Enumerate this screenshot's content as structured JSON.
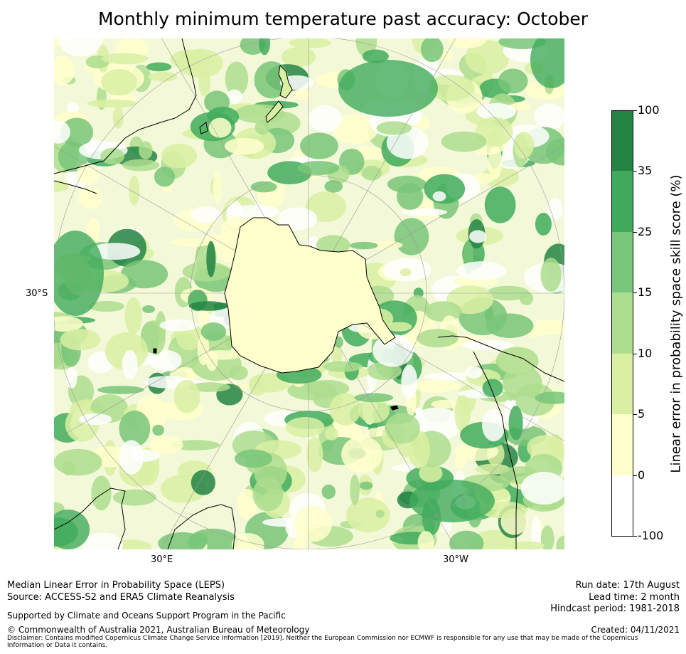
{
  "title": "Monthly minimum temperature past accuracy: October",
  "map": {
    "projection": "south-polar-stereographic",
    "latitude_labels": [
      "30°S"
    ],
    "longitude_labels": [
      "30°E",
      "30°W"
    ],
    "colors": {
      "coast": "#000000",
      "graticule": "#9a9a9a"
    }
  },
  "colorbar": {
    "title": "Linear error in probability space skill score (%)",
    "ticks": [
      "-100",
      "0",
      "5",
      "10",
      "15",
      "25",
      "35",
      "100"
    ],
    "bins": [
      {
        "from": "-100",
        "to": "0",
        "color": "#ffffff"
      },
      {
        "from": "0",
        "to": "5",
        "color": "#ffffcc"
      },
      {
        "from": "5",
        "to": "10",
        "color": "#d9f0a3"
      },
      {
        "from": "10",
        "to": "15",
        "color": "#addd8e"
      },
      {
        "from": "15",
        "to": "25",
        "color": "#78c679"
      },
      {
        "from": "25",
        "to": "35",
        "color": "#41ab5d"
      },
      {
        "from": "35",
        "to": "100",
        "color": "#238443"
      }
    ]
  },
  "footer": {
    "line1": "Median Linear Error in Probability Space (LEPS)",
    "line2": "Source: ACCESS-S2 and ERA5 Climate Reanalysis",
    "support": "Supported by Climate and Oceans Support Program in the Pacific",
    "copyright": "© Commonwealth of Australia 2021, Australian Bureau of Meteorology",
    "run_date": "Run date: 17th August",
    "lead_time": "Lead time: 2 month",
    "hindcast": "Hindcast period: 1981-2018",
    "created": "Created: 04/11/2021",
    "disclaimer": "Disclaimer: Contains modified Copernicus Climate Change Service Information [2019]. Neither the European Commission nor ECMWF is responsible for any use that may be made of the Copernicus Information or Data it contains."
  }
}
